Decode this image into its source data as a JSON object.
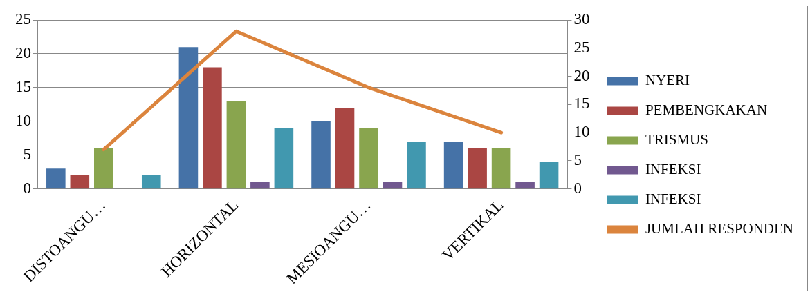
{
  "chart_data": {
    "type": "bar",
    "categories": [
      "DISTOANGU…",
      "HORIZONTAL",
      "MESIOANGU…",
      "VERTIKAL"
    ],
    "series": [
      {
        "name": "NYERI",
        "color": "#4572a7",
        "values": [
          3,
          21,
          10,
          7
        ]
      },
      {
        "name": "PEMBENGKAKAN",
        "color": "#aa4643",
        "values": [
          2,
          18,
          12,
          6
        ]
      },
      {
        "name": "TRISMUS",
        "color": "#89a54e",
        "values": [
          6,
          13,
          9,
          6
        ]
      },
      {
        "name": "INFEKSI",
        "color": "#71588f",
        "values": [
          0,
          1,
          1,
          1
        ]
      },
      {
        "name": "INFEKSI",
        "color": "#4198af",
        "values": [
          2,
          9,
          7,
          4
        ]
      },
      {
        "name": "JUMLAH RESPONDEN",
        "type": "line",
        "axis": "y2",
        "color": "#db843d",
        "values": [
          7,
          28,
          18,
          10
        ]
      }
    ],
    "ylim": [
      0,
      25
    ],
    "yticks": [
      0,
      5,
      10,
      15,
      20,
      25
    ],
    "y2lim": [
      0,
      30
    ],
    "y2ticks": [
      0,
      5,
      10,
      15,
      20,
      25,
      30
    ],
    "grid": "y",
    "legend": "right",
    "marker": "none"
  }
}
